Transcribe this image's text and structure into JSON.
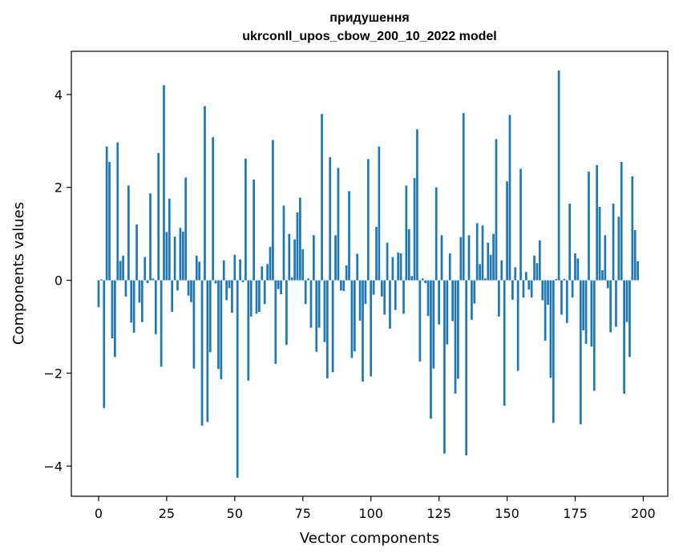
{
  "chart_data": {
    "type": "bar",
    "title_line1": "придушення",
    "title_line2": "ukrconll_upos_cbow_200_10_2022 model",
    "xlabel": "Vector components",
    "ylabel": "Components values",
    "xlim": [
      -10,
      209
    ],
    "ylim": [
      -4.65,
      4.93
    ],
    "xticks": [
      0,
      25,
      50,
      75,
      100,
      125,
      150,
      175,
      200
    ],
    "xtick_labels": [
      "0",
      "25",
      "50",
      "75",
      "100",
      "125",
      "150",
      "175",
      "200"
    ],
    "yticks": [
      -4,
      -2,
      0,
      2,
      4
    ],
    "ytick_labels": [
      "−4",
      "−2",
      "0",
      "2",
      "4"
    ],
    "bar_color": "#1f77b4",
    "values": [
      -0.58,
      0.02,
      -2.75,
      2.88,
      2.55,
      -1.25,
      -1.65,
      2.97,
      0.42,
      0.53,
      -0.35,
      2.04,
      -0.91,
      -1.13,
      1.2,
      -0.48,
      -0.9,
      0.5,
      -0.06,
      1.87,
      0.04,
      -1.16,
      2.74,
      -1.86,
      4.2,
      1.04,
      1.76,
      -0.68,
      0.94,
      -0.22,
      1.13,
      1.05,
      2.21,
      -0.33,
      -0.47,
      -1.9,
      0.53,
      0.4,
      -3.13,
      3.75,
      -3.05,
      -1.55,
      3.08,
      -0.07,
      -1.91,
      -2.13,
      0.43,
      -0.43,
      -0.17,
      -0.7,
      0.55,
      -4.25,
      0.45,
      -0.04,
      2.62,
      -2.16,
      -0.78,
      2.17,
      -0.72,
      -0.68,
      0.3,
      -0.51,
      0.35,
      0.72,
      3.02,
      -1.8,
      -0.19,
      -0.3,
      1.61,
      -1.39,
      1.0,
      0.06,
      0.88,
      1.46,
      1.78,
      0.67,
      -0.51,
      0.04,
      -1.02,
      0.97,
      -1.54,
      -1.02,
      3.58,
      -1.33,
      -2.11,
      2.65,
      -1.98,
      0.97,
      2.42,
      -0.22,
      -0.23,
      0.32,
      1.92,
      -1.67,
      -1.53,
      0.57,
      -0.87,
      -2.18,
      -0.51,
      2.61,
      -2.07,
      -0.31,
      1.15,
      2.88,
      -0.35,
      -0.74,
      0.81,
      -1.04,
      0.5,
      -0.64,
      0.6,
      0.58,
      -0.72,
      2.04,
      1.1,
      0.09,
      2.2,
      3.25,
      -1.75,
      0.04,
      -0.06,
      -0.77,
      -2.98,
      -1.9,
      2.0,
      -0.95,
      0.97,
      -3.73,
      -1.38,
      0.58,
      -0.88,
      -2.44,
      -2.12,
      0.93,
      3.6,
      -3.77,
      0.97,
      -0.85,
      -0.5,
      1.23,
      0.35,
      1.18,
      0.04,
      0.81,
      0.55,
      1.0,
      3.04,
      -0.78,
      0.43,
      -2.7,
      2.13,
      3.56,
      -0.42,
      0.28,
      -1.95,
      2.4,
      -0.37,
      0.18,
      -0.2,
      -0.37,
      0.53,
      0.37,
      0.86,
      -0.43,
      -1.3,
      -0.53,
      -2.1,
      -3.07,
      0.03,
      4.52,
      -0.74,
      0.03,
      -0.92,
      1.65,
      -0.37,
      0.58,
      0.47,
      -3.1,
      -1.08,
      -1.37,
      2.34,
      -1.43,
      -2.38,
      2.48,
      1.58,
      0.22,
      0.97,
      -0.17,
      -1.12,
      1.65,
      -1.0,
      1.37,
      2.55,
      -2.44,
      -0.9,
      -1.65,
      2.24,
      1.08,
      0.41
    ]
  }
}
